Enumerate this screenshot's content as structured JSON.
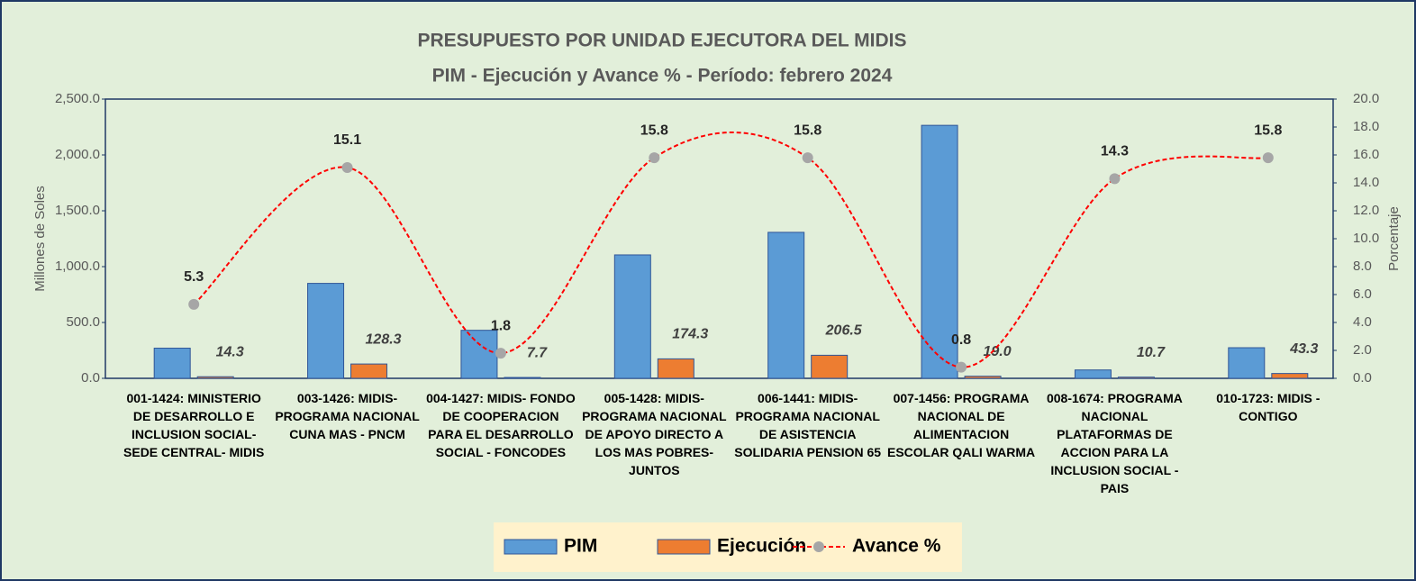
{
  "chart_data": {
    "type": "bar",
    "title": "PRESUPUESTO POR UNIDAD EJECUTORA DEL MIDIS",
    "subtitle": "PIM - Ejecución y Avance % - Período:  febrero 2024",
    "y_label": "Millones de Soles",
    "y2_label": "Porcentaje",
    "categories": [
      "001-1424: MINISTERIO DE DESARROLLO E INCLUSION SOCIAL- SEDE CENTRAL- MIDIS",
      "003-1426: MIDIS- PROGRAMA NACIONAL CUNA MAS - PNCM",
      "004-1427: MIDIS- FONDO DE COOPERACION PARA EL DESARROLLO SOCIAL - FONCODES",
      "005-1428: MIDIS- PROGRAMA NACIONAL DE APOYO DIRECTO A LOS MAS POBRES- JUNTOS",
      "006-1441: MIDIS- PROGRAMA NACIONAL DE ASISTENCIA SOLIDARIA PENSION 65",
      "007-1456: PROGRAMA NACIONAL DE ALIMENTACION ESCOLAR QALI WARMA",
      "008-1674: PROGRAMA NACIONAL PLATAFORMAS DE ACCION PARA LA INCLUSION SOCIAL - PAIS",
      "010-1723: MIDIS - CONTIGO"
    ],
    "series": [
      {
        "name": "PIM",
        "type": "bar",
        "color": "#5b9bd5",
        "values": [
          270,
          850,
          430,
          1105,
          1307,
          2265,
          75,
          274
        ]
      },
      {
        "name": "Ejecución",
        "type": "bar",
        "color": "#ed7d31",
        "values": [
          14.3,
          128.3,
          7.7,
          174.3,
          206.5,
          19.0,
          10.7,
          43.3
        ],
        "value_labels": [
          "14.3",
          "128.3",
          "7.7",
          "174.3",
          "206.5",
          "19.0",
          "10.7",
          "43.3"
        ]
      },
      {
        "name": "Avance %",
        "type": "line",
        "axis": "y2",
        "color": "#ff0000",
        "marker_color": "#a6a6a6",
        "values": [
          5.3,
          15.1,
          1.8,
          15.8,
          15.8,
          0.8,
          14.3,
          15.8
        ]
      }
    ],
    "ylim": [
      0,
      2500
    ],
    "yticks": [
      {
        "value": 0,
        "label": "0.0"
      },
      {
        "value": 500,
        "label": "500.0"
      },
      {
        "value": 1000,
        "label": "1,000.0"
      },
      {
        "value": 1500,
        "label": "1,500.0"
      },
      {
        "value": 2000,
        "label": "2,000.0"
      },
      {
        "value": 2500,
        "label": "2,500.0"
      }
    ],
    "y2lim": [
      0,
      20
    ],
    "y2ticks": [
      {
        "value": 0,
        "label": "0.0"
      },
      {
        "value": 2,
        "label": "2.0"
      },
      {
        "value": 4,
        "label": "4.0"
      },
      {
        "value": 6,
        "label": "6.0"
      },
      {
        "value": 8,
        "label": "8.0"
      },
      {
        "value": 10,
        "label": "10.0"
      },
      {
        "value": 12,
        "label": "12.0"
      },
      {
        "value": 14,
        "label": "14.0"
      },
      {
        "value": 16,
        "label": "16.0"
      },
      {
        "value": 18,
        "label": "18.0"
      },
      {
        "value": 20,
        "label": "20.0"
      }
    ],
    "legend": "bottom"
  }
}
